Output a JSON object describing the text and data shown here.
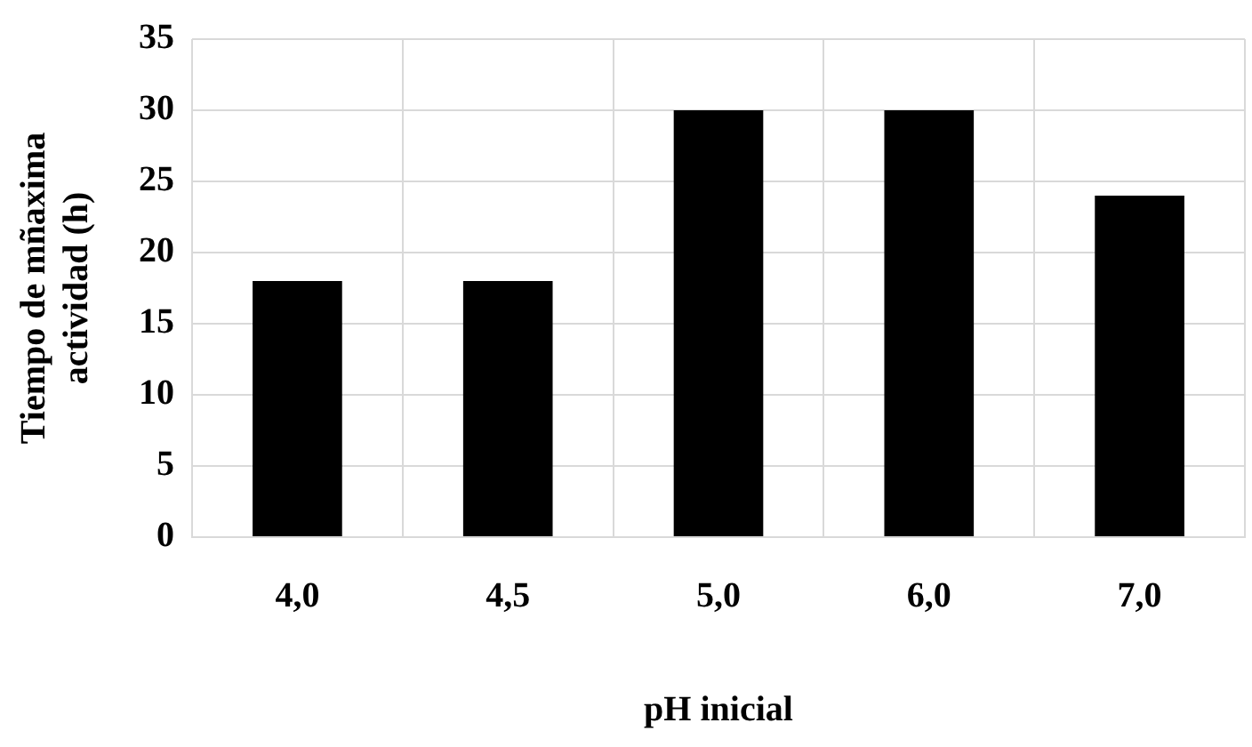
{
  "chart_data": {
    "type": "bar",
    "xlabel": "pH inicial",
    "ylabel": "Tiempo de mñaxima actividad (h)",
    "categories": [
      "4,0",
      "4,5",
      "5,0",
      "6,0",
      "7,0"
    ],
    "values": [
      18,
      18,
      30,
      30,
      24
    ],
    "color": "#000000",
    "ylim": [
      0,
      35
    ],
    "yticks": [
      0,
      5,
      10,
      15,
      20,
      25,
      30,
      35
    ],
    "grid": true,
    "legend": false
  }
}
